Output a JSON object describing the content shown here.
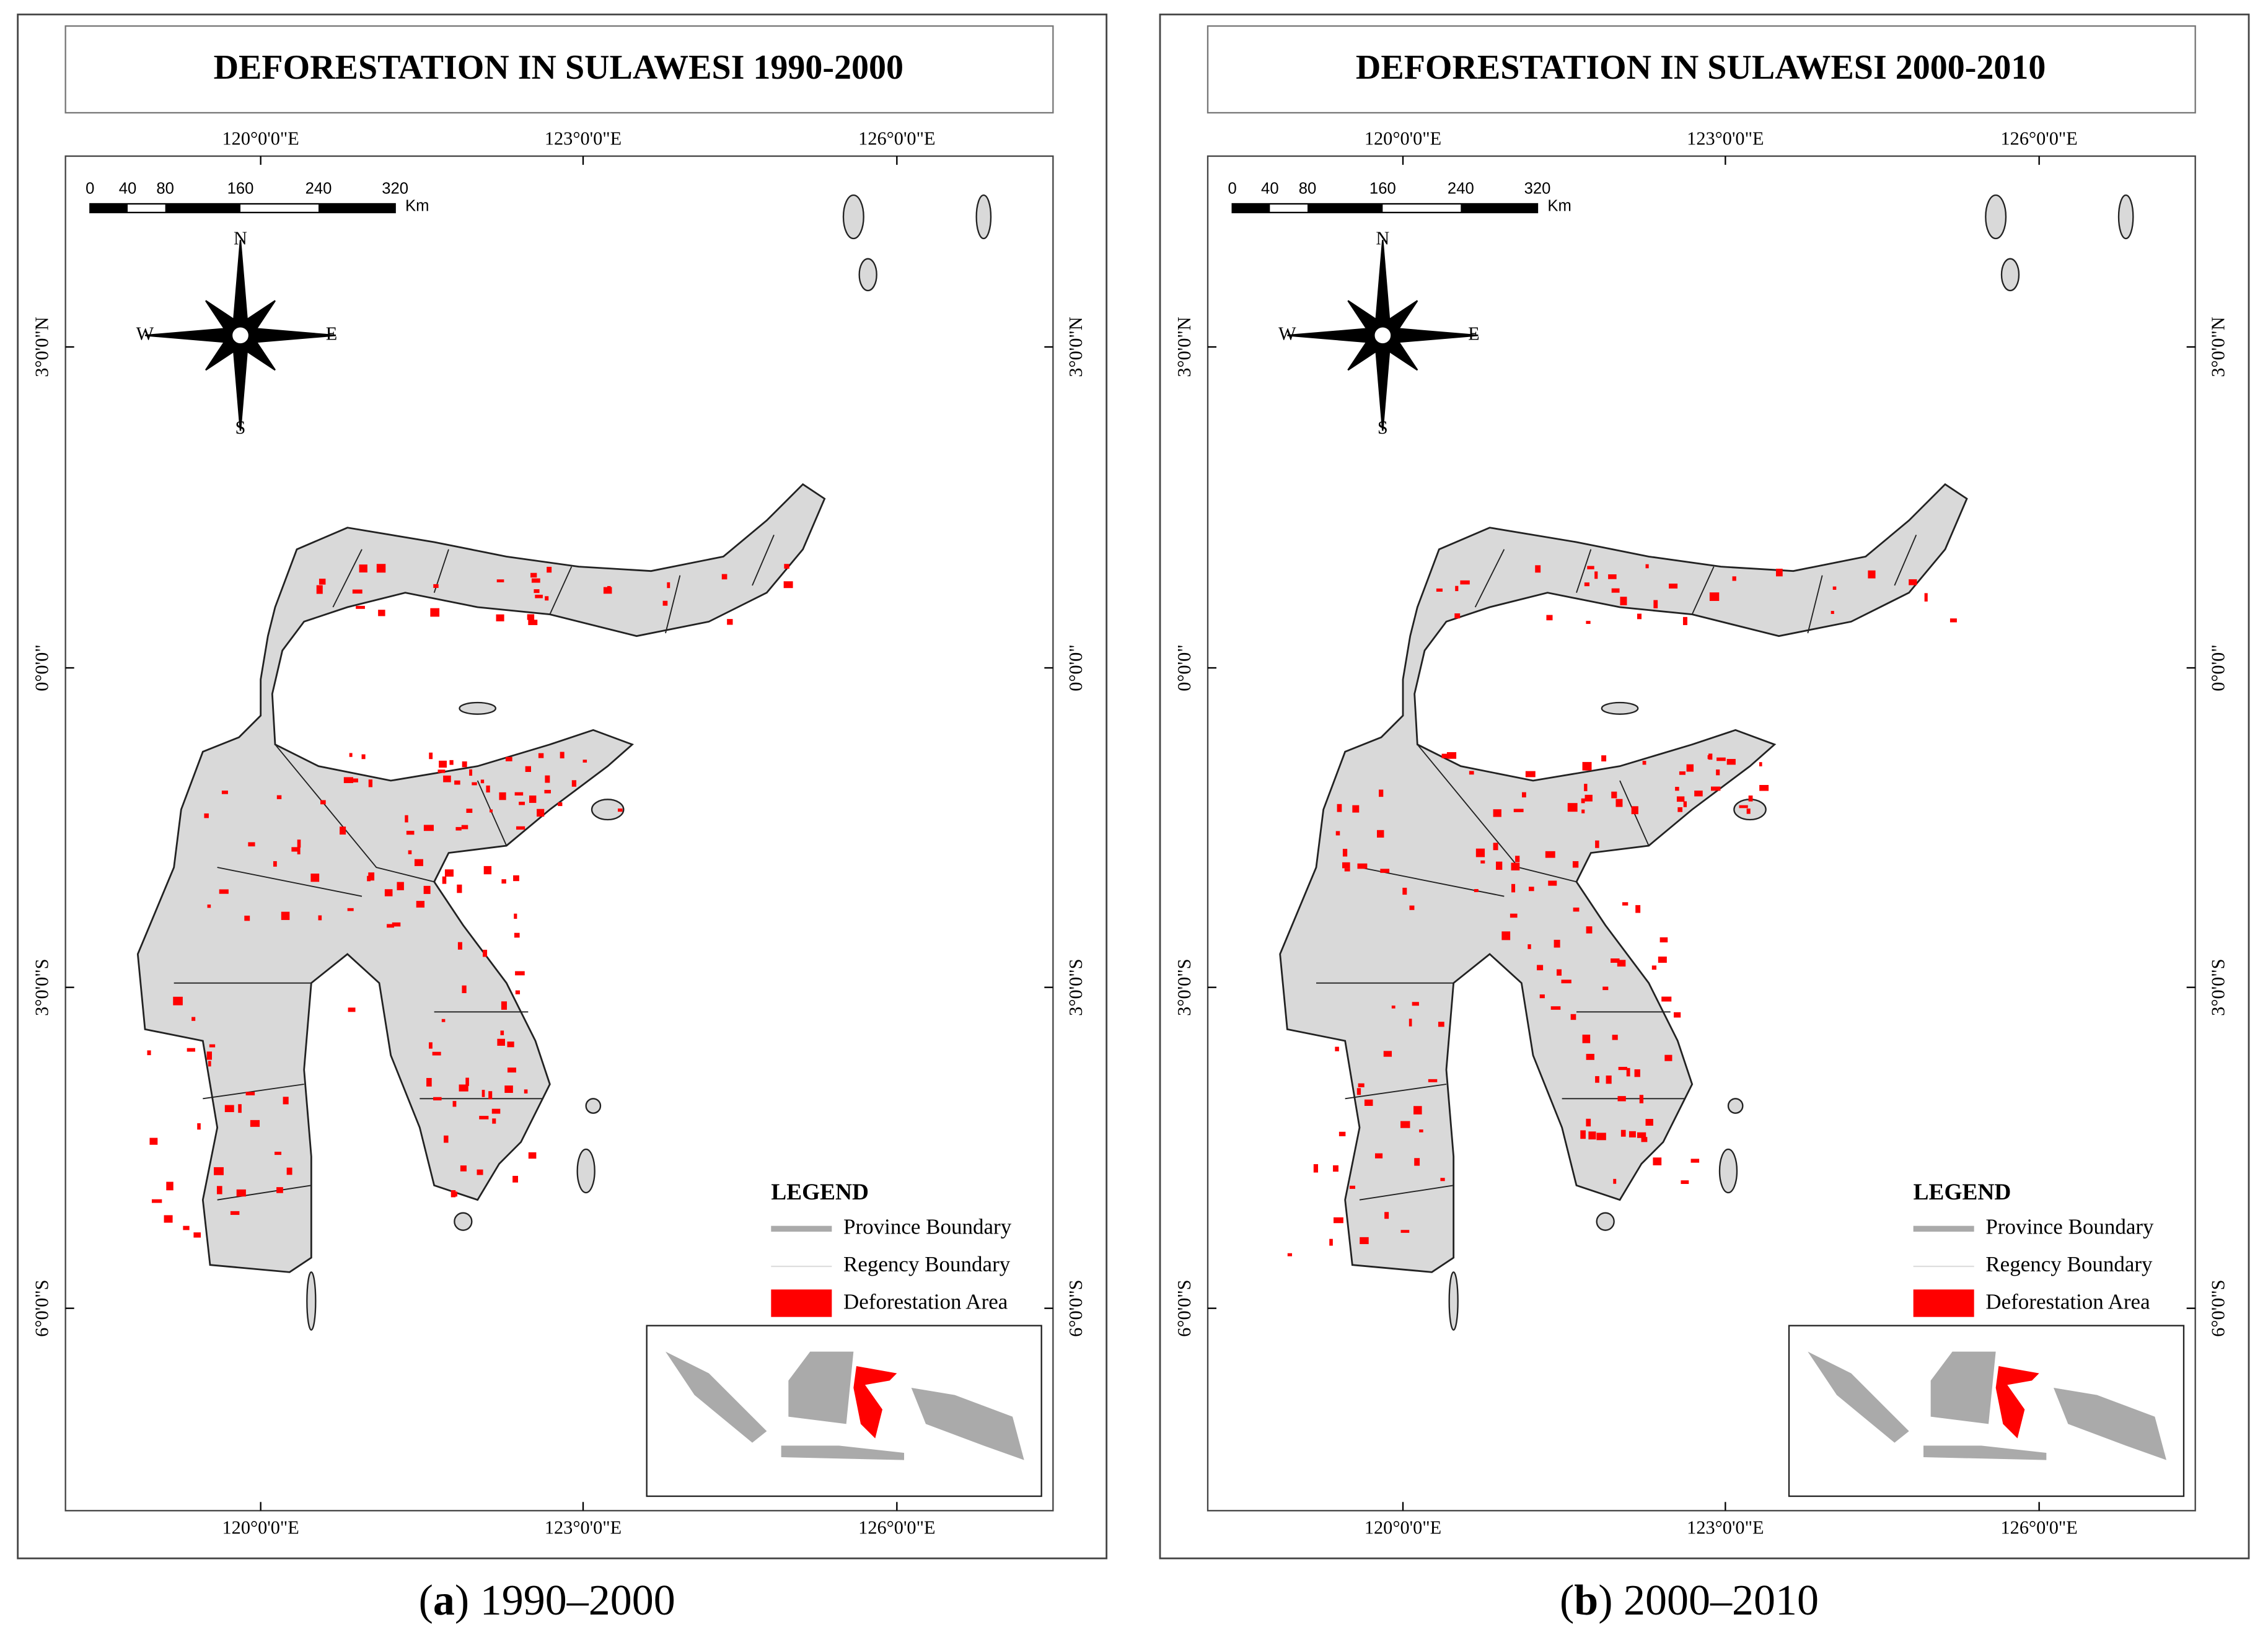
{
  "panels": [
    {
      "title": "DEFORESTATION IN SULAWESI 1990-2000",
      "caption": [
        "(",
        "a",
        ") 1990–2000"
      ]
    },
    {
      "title": "DEFORESTATION IN SULAWESI 2000-2010",
      "caption": [
        "(",
        "b",
        ") 2000–2010"
      ]
    }
  ],
  "longitude_labels": [
    "120°0'0\"E",
    "123°0'0\"E",
    "126°0'0\"E"
  ],
  "latitude_labels": [
    "3°0'0\"N",
    "0°0'0\"",
    "3°0'0\"S",
    "6°0'0\"S"
  ],
  "scale_bar": {
    "ticks": [
      "0",
      "40",
      "80",
      "160",
      "240",
      "320"
    ],
    "unit": "Km"
  },
  "compass": {
    "north": "N",
    "south": "S",
    "west": "W",
    "east": "E"
  },
  "legend": {
    "title": "LEGEND",
    "items": [
      "Province Boundary",
      "Regency Boundary",
      "Deforestation Area"
    ]
  }
}
